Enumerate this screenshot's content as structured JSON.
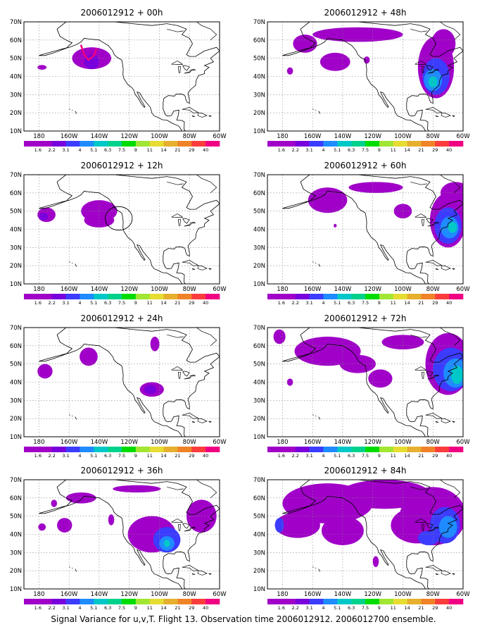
{
  "figure": {
    "caption": "Signal Variance for u,v,T. Flight 13. Observation time 2006012912. 2006012700 ensemble.",
    "colorbar": {
      "labels": [
        "1.6",
        "2.2",
        "3.1",
        "4",
        "5.1",
        "6.3",
        "7.5",
        "9",
        "11",
        "14",
        "21",
        "29",
        "40"
      ],
      "colors": [
        "#a000c8",
        "#7800dc",
        "#3c3cff",
        "#1e8cff",
        "#00c8c8",
        "#00d28c",
        "#00dc00",
        "#a0e632",
        "#e6dc32",
        "#e6af2d",
        "#f08228",
        "#fa3c3c",
        "#f00082"
      ]
    },
    "lat_labels": [
      "70N",
      "60N",
      "50N",
      "40N",
      "30N",
      "20N",
      "10N"
    ],
    "lon_labels": [
      "180",
      "160W",
      "140W",
      "120W",
      "100W",
      "80W",
      "60W"
    ],
    "colors": {
      "fill_main": "#a000c8",
      "fill_deep": "#7800dc",
      "fill_blue": "#3c3cff",
      "fill_light": "#1e8cff",
      "fill_cyan": "#00c8c8",
      "fill_green": "#00d28c",
      "track": "#f00082",
      "coast": "#000000"
    },
    "panels": [
      {
        "title": "2006012912 + 00h",
        "blobs": [
          [
            -145,
            50,
            13,
            6,
            "#a000c8"
          ],
          [
            -145,
            48,
            5,
            4,
            "#7800dc"
          ],
          [
            -178,
            45,
            3,
            1.3,
            "#a000c8"
          ]
        ],
        "track": [
          [
            -152,
            57
          ],
          [
            -150,
            52
          ],
          [
            -147,
            49
          ],
          [
            -143,
            52
          ],
          [
            -142,
            55
          ]
        ],
        "circle": null
      },
      {
        "title": "2006012912 + 48h",
        "blobs": [
          [
            -145,
            48,
            10,
            5,
            "#a000c8"
          ],
          [
            -130,
            63,
            30,
            4,
            "#a000c8"
          ],
          [
            -78,
            45,
            12,
            17,
            "#a000c8"
          ],
          [
            -78,
            40,
            9,
            10,
            "#3c3cff"
          ],
          [
            -80,
            38,
            6,
            6,
            "#1e8cff"
          ],
          [
            -80,
            37,
            3,
            3,
            "#00c8c8"
          ],
          [
            -73,
            58,
            8,
            8,
            "#a000c8"
          ],
          [
            -165,
            58,
            8,
            5,
            "#a000c8"
          ],
          [
            -124,
            49,
            2,
            2,
            "#a000c8"
          ],
          [
            -175,
            43,
            2,
            2,
            "#a000c8"
          ]
        ],
        "track": null,
        "circle": null
      },
      {
        "title": "2006012912 + 12h",
        "blobs": [
          [
            -140,
            50,
            12,
            6,
            "#a000c8"
          ],
          [
            -140,
            45,
            10,
            4,
            "#a000c8"
          ],
          [
            -175,
            48,
            6,
            4,
            "#a000c8"
          ],
          [
            -177,
            47,
            3,
            2,
            "#7800dc"
          ]
        ],
        "track": null,
        "circle": [
          -127,
          46,
          9
        ]
      },
      {
        "title": "2006012912 + 60h",
        "blobs": [
          [
            -150,
            56,
            13,
            7,
            "#a000c8"
          ],
          [
            -118,
            63,
            18,
            3,
            "#a000c8"
          ],
          [
            -100,
            50,
            6,
            4,
            "#a000c8"
          ],
          [
            -145,
            42,
            1,
            1,
            "#a000c8"
          ],
          [
            -70,
            45,
            12,
            15,
            "#a000c8"
          ],
          [
            -70,
            42,
            9,
            10,
            "#3c3cff"
          ],
          [
            -69,
            41,
            6,
            6,
            "#1e8cff"
          ],
          [
            -67,
            41,
            3,
            3,
            "#00c8c8"
          ],
          [
            -65,
            60,
            10,
            6,
            "#a000c8"
          ]
        ],
        "track": null,
        "circle": null
      },
      {
        "title": "2006012912 + 24h",
        "blobs": [
          [
            -147,
            54,
            6,
            5,
            "#a000c8"
          ],
          [
            -176,
            46,
            5,
            4,
            "#a000c8"
          ],
          [
            -105,
            36,
            8,
            4,
            "#a000c8"
          ],
          [
            -106,
            36,
            4,
            2.5,
            "#7800dc"
          ],
          [
            -103,
            61,
            3,
            4,
            "#a000c8"
          ]
        ],
        "track": null,
        "circle": null
      },
      {
        "title": "2006012912 + 72h",
        "blobs": [
          [
            -150,
            57,
            22,
            8,
            "#a000c8"
          ],
          [
            -130,
            50,
            12,
            5,
            "#a000c8"
          ],
          [
            -115,
            42,
            8,
            5,
            "#a000c8"
          ],
          [
            -100,
            62,
            14,
            4,
            "#a000c8"
          ],
          [
            -70,
            50,
            15,
            17,
            "#a000c8"
          ],
          [
            -68,
            47,
            12,
            12,
            "#3c3cff"
          ],
          [
            -65,
            45,
            8,
            8,
            "#1e8cff"
          ],
          [
            -64,
            44,
            4,
            5,
            "#00c8c8"
          ],
          [
            -182,
            65,
            4,
            4,
            "#a000c8"
          ],
          [
            -175,
            40,
            2,
            2,
            "#a000c8"
          ]
        ],
        "track": null,
        "circle": null
      },
      {
        "title": "2006012912 + 36h",
        "blobs": [
          [
            -152,
            60,
            10,
            3,
            "#a000c8"
          ],
          [
            -170,
            57,
            2,
            2,
            "#a000c8"
          ],
          [
            -163,
            45,
            5,
            4,
            "#a000c8"
          ],
          [
            -178,
            44,
            2.5,
            2,
            "#a000c8"
          ],
          [
            -132,
            48,
            2,
            3,
            "#a000c8"
          ],
          [
            -105,
            40,
            16,
            10,
            "#a000c8"
          ],
          [
            -95,
            37,
            9,
            7,
            "#3c3cff"
          ],
          [
            -95,
            35,
            5,
            4,
            "#1e8cff"
          ],
          [
            -95,
            35,
            2,
            2,
            "#00c8c8"
          ],
          [
            -115,
            65,
            16,
            2,
            "#a000c8"
          ],
          [
            -72,
            50,
            10,
            9,
            "#a000c8"
          ]
        ],
        "track": null,
        "circle": null
      },
      {
        "title": "2006012912 + 84h",
        "blobs": [
          [
            -150,
            57,
            30,
            11,
            "#a000c8"
          ],
          [
            -170,
            45,
            15,
            7,
            "#a000c8"
          ],
          [
            -140,
            42,
            14,
            8,
            "#a000c8"
          ],
          [
            -112,
            62,
            30,
            8,
            "#a000c8"
          ],
          [
            -80,
            50,
            22,
            16,
            "#a000c8"
          ],
          [
            -90,
            45,
            18,
            10,
            "#a000c8"
          ],
          [
            -72,
            45,
            10,
            10,
            "#3c3cff"
          ],
          [
            -70,
            44,
            6,
            6,
            "#1e8cff"
          ],
          [
            -83,
            38,
            7,
            4,
            "#3c3cff"
          ],
          [
            -118,
            25,
            2,
            3,
            "#a000c8"
          ],
          [
            -182,
            45,
            3,
            4,
            "#3c3cff"
          ]
        ],
        "track": null,
        "circle": null
      }
    ]
  }
}
